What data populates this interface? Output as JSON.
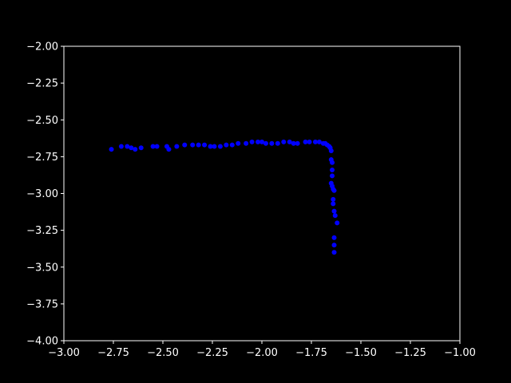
{
  "chart_data": {
    "type": "scatter",
    "title": "",
    "xlabel": "",
    "ylabel": "",
    "xlim": [
      -3.0,
      -1.0
    ],
    "ylim": [
      -4.0,
      -2.0
    ],
    "grid": false,
    "x_ticks": [
      "−3.00",
      "−2.75",
      "−2.50",
      "−2.25",
      "−2.00",
      "−1.75",
      "−1.50",
      "−1.25",
      "−1.00"
    ],
    "y_ticks": [
      "−2.00",
      "−2.25",
      "−2.50",
      "−2.75",
      "−3.00",
      "−3.25",
      "−3.50",
      "−3.75",
      "−4.00"
    ],
    "x_tick_values": [
      -3.0,
      -2.75,
      -2.5,
      -2.25,
      -2.0,
      -1.75,
      -1.5,
      -1.25,
      -1.0
    ],
    "y_tick_values": [
      -2.0,
      -2.25,
      -2.5,
      -2.75,
      -3.0,
      -3.25,
      -3.5,
      -3.75,
      -4.0
    ],
    "background_color": "#000000",
    "axis_color": "#ffffff",
    "series": [
      {
        "color": "#0000ff",
        "x": [
          -2.76,
          -2.71,
          -2.68,
          -2.66,
          -2.64,
          -2.61,
          -2.55,
          -2.53,
          -2.48,
          -2.47,
          -2.43,
          -2.39,
          -2.35,
          -2.32,
          -2.29,
          -2.26,
          -2.24,
          -2.21,
          -2.18,
          -2.15,
          -2.12,
          -2.08,
          -2.05,
          -2.02,
          -2.0,
          -1.98,
          -1.95,
          -1.92,
          -1.89,
          -1.86,
          -1.84,
          -1.82,
          -1.78,
          -1.76,
          -1.73,
          -1.71,
          -1.69,
          -1.68,
          -1.67,
          -1.66,
          -1.655,
          -1.65,
          -1.65,
          -1.645,
          -1.645,
          -1.645,
          -1.65,
          -1.645,
          -1.64,
          -1.635,
          -1.64,
          -1.64,
          -1.635,
          -1.63,
          -1.62,
          -1.635,
          -1.635,
          -1.635
        ],
        "y": [
          -2.7,
          -2.68,
          -2.68,
          -2.69,
          -2.7,
          -2.69,
          -2.68,
          -2.68,
          -2.68,
          -2.7,
          -2.68,
          -2.67,
          -2.67,
          -2.67,
          -2.67,
          -2.68,
          -2.68,
          -2.68,
          -2.67,
          -2.67,
          -2.66,
          -2.66,
          -2.65,
          -2.65,
          -2.65,
          -2.66,
          -2.66,
          -2.66,
          -2.65,
          -2.65,
          -2.66,
          -2.66,
          -2.65,
          -2.65,
          -2.65,
          -2.65,
          -2.66,
          -2.66,
          -2.67,
          -2.68,
          -2.69,
          -2.71,
          -2.77,
          -2.79,
          -2.84,
          -2.88,
          -2.93,
          -2.95,
          -2.97,
          -2.98,
          -3.04,
          -3.07,
          -3.12,
          -3.15,
          -3.2,
          -3.3,
          -3.35,
          -3.4
        ]
      }
    ]
  }
}
